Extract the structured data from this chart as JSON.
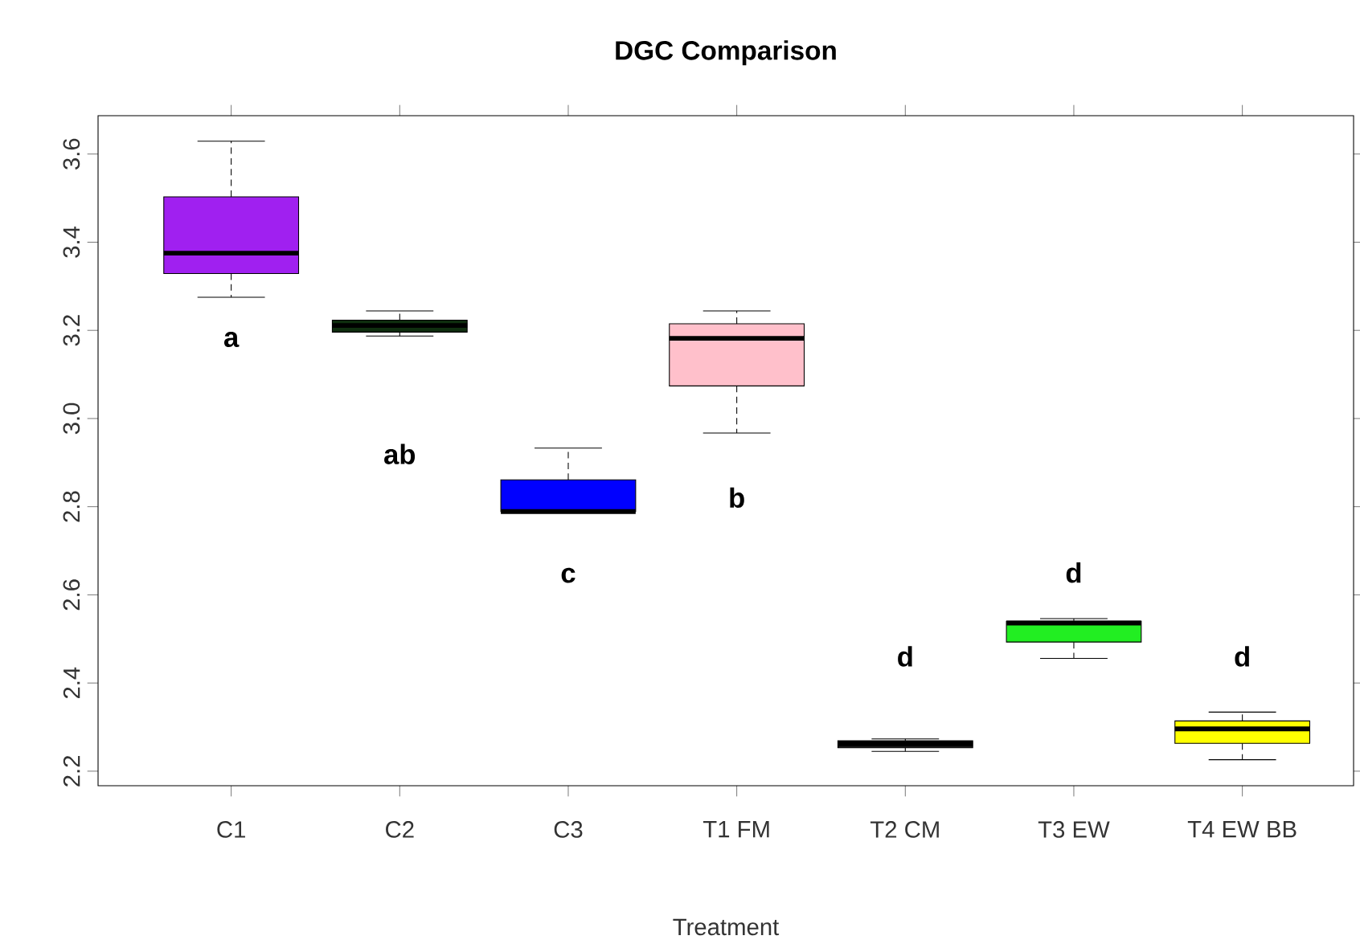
{
  "chart_data": {
    "type": "box",
    "title": "DGC Comparison",
    "xlabel": "Treatment",
    "categories": [
      "C1",
      "C2",
      "C3",
      "T1 FM",
      "T2 CM",
      "T3 EW",
      "T4 EW BB"
    ],
    "colors": [
      "#a020f0",
      "#0f2e0f",
      "#0000ff",
      "#ffc0cb",
      "#1a1a1a",
      "#22ee22",
      "#ffff00"
    ],
    "boxes": [
      {
        "low": 3.275,
        "q1": 3.329,
        "median": 3.375,
        "q3": 3.503,
        "high": 3.629
      },
      {
        "low": 3.187,
        "q1": 3.196,
        "median": 3.211,
        "q3": 3.223,
        "high": 3.244
      },
      {
        "low": 2.789,
        "q1": 2.789,
        "median": 2.789,
        "q3": 2.861,
        "high": 2.933
      },
      {
        "low": 2.967,
        "q1": 3.074,
        "median": 3.182,
        "q3": 3.215,
        "high": 3.244
      },
      {
        "low": 2.245,
        "q1": 2.253,
        "median": 2.262,
        "q3": 2.269,
        "high": 2.273
      },
      {
        "low": 2.456,
        "q1": 2.493,
        "median": 2.536,
        "q3": 2.54,
        "high": 2.546
      },
      {
        "low": 2.226,
        "q1": 2.263,
        "median": 2.296,
        "q3": 2.314,
        "high": 2.334
      }
    ],
    "ylim": [
      2.167,
      3.687
    ],
    "yticks": [
      2.2,
      2.4,
      2.6,
      2.8,
      {
        "value": 3.0,
        "label": "3.0"
      },
      3.2,
      3.4,
      3.6
    ],
    "annotations": [
      "a",
      "ab",
      "c",
      "b",
      "d",
      "d",
      "d"
    ]
  }
}
